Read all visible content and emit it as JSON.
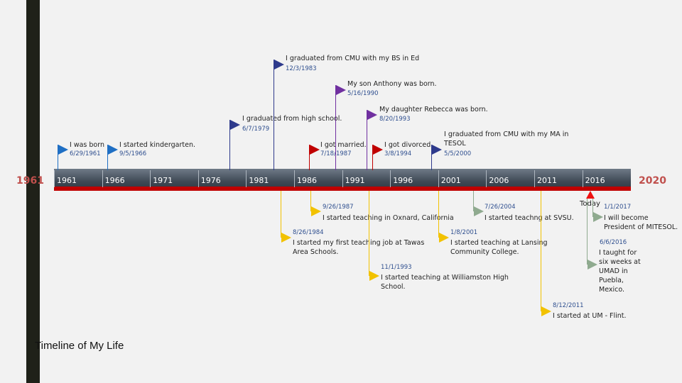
{
  "title": "Timeline of My Life",
  "start_year": "1961",
  "end_year": "2020",
  "today_label": "Today",
  "ticks": [
    "1961",
    "1966",
    "1971",
    "1976",
    "1981",
    "1986",
    "1991",
    "1996",
    "2001",
    "2006",
    "2011",
    "2016"
  ],
  "colors": {
    "blue": "#1f6fc4",
    "navy": "#2e3a8c",
    "purple": "#7030a0",
    "red": "#c00000",
    "yellow": "#f2c200",
    "gray_green": "#8faa8f",
    "axis_red": "#c00000",
    "year_red": "#c0504d"
  },
  "events": {
    "born": {
      "text": "I was born",
      "date": "6/29/1961"
    },
    "kindergarten": {
      "text": "I started kindergarten.",
      "date": "9/5/1966"
    },
    "high_school": {
      "text": "I graduated from high school.",
      "date": "6/7/1979"
    },
    "bs_ed": {
      "text": "I graduated from CMU with my BS in Ed",
      "date": "12/3/1983"
    },
    "married": {
      "text": "I got married.",
      "date": "7/18/1987"
    },
    "anthony": {
      "text": "My son Anthony was born.",
      "date": "5/16/1990"
    },
    "rebecca": {
      "text": "My daughter Rebecca was born.",
      "date": "8/20/1993"
    },
    "divorced": {
      "text": "I got divorced.",
      "date": "3/8/1994"
    },
    "ma_tesol": {
      "text": "I graduated from CMU with my MA in TESOL",
      "date": "5/5/2000"
    },
    "tawas": {
      "text": "I started my first teaching job at Tawas Area Schools.",
      "date": "8/26/1984"
    },
    "oxnard": {
      "text": "I started teaching in Oxnard, California",
      "date": "9/26/1987"
    },
    "williamston": {
      "text": "I started teaching at Williamston High School.",
      "date": "11/1/1993"
    },
    "lansing": {
      "text": "I started teaching at Lansing Community College.",
      "date": "1/8/2001"
    },
    "svsu": {
      "text": "I started teachng at SVSU.",
      "date": "7/26/2004"
    },
    "umflint": {
      "text": "I started at UM - Flint.",
      "date": "8/12/2011"
    },
    "umad": {
      "text": "I taught for six weeks at UMAD in Puebla, Mexico.",
      "date": "6/6/2016"
    },
    "mitesol": {
      "text": "I will become President of MITESOL.",
      "date": "1/1/2017"
    }
  }
}
